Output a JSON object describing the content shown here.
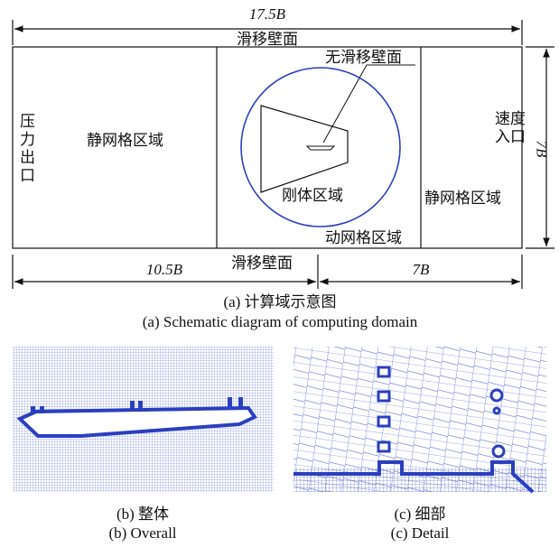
{
  "figure_a": {
    "top_dimension": "17.5B",
    "top_wall": "滑移壁面",
    "no_slip_wall": "无滑移壁面",
    "outlet": "压力出口",
    "left_static_mesh": "静网格区域",
    "inlet": "速度入口",
    "right_dimension": "7B",
    "rigid_region": "刚体区域",
    "right_static_mesh": "静网格区域",
    "dynamic_mesh": "动网格区域",
    "bottom_left_dimension": "10.5B",
    "bottom_wall": "滑移壁面",
    "bottom_right_dimension": "7B",
    "caption_cn": "(a)  计算域示意图",
    "caption_en": "(a)  Schematic diagram of computing domain"
  },
  "figure_b": {
    "caption_cn": "(b)  整体",
    "caption_en": "(b)  Overall"
  },
  "figure_c": {
    "caption_cn": "(c)  细部",
    "caption_en": "(c)  Detail"
  }
}
